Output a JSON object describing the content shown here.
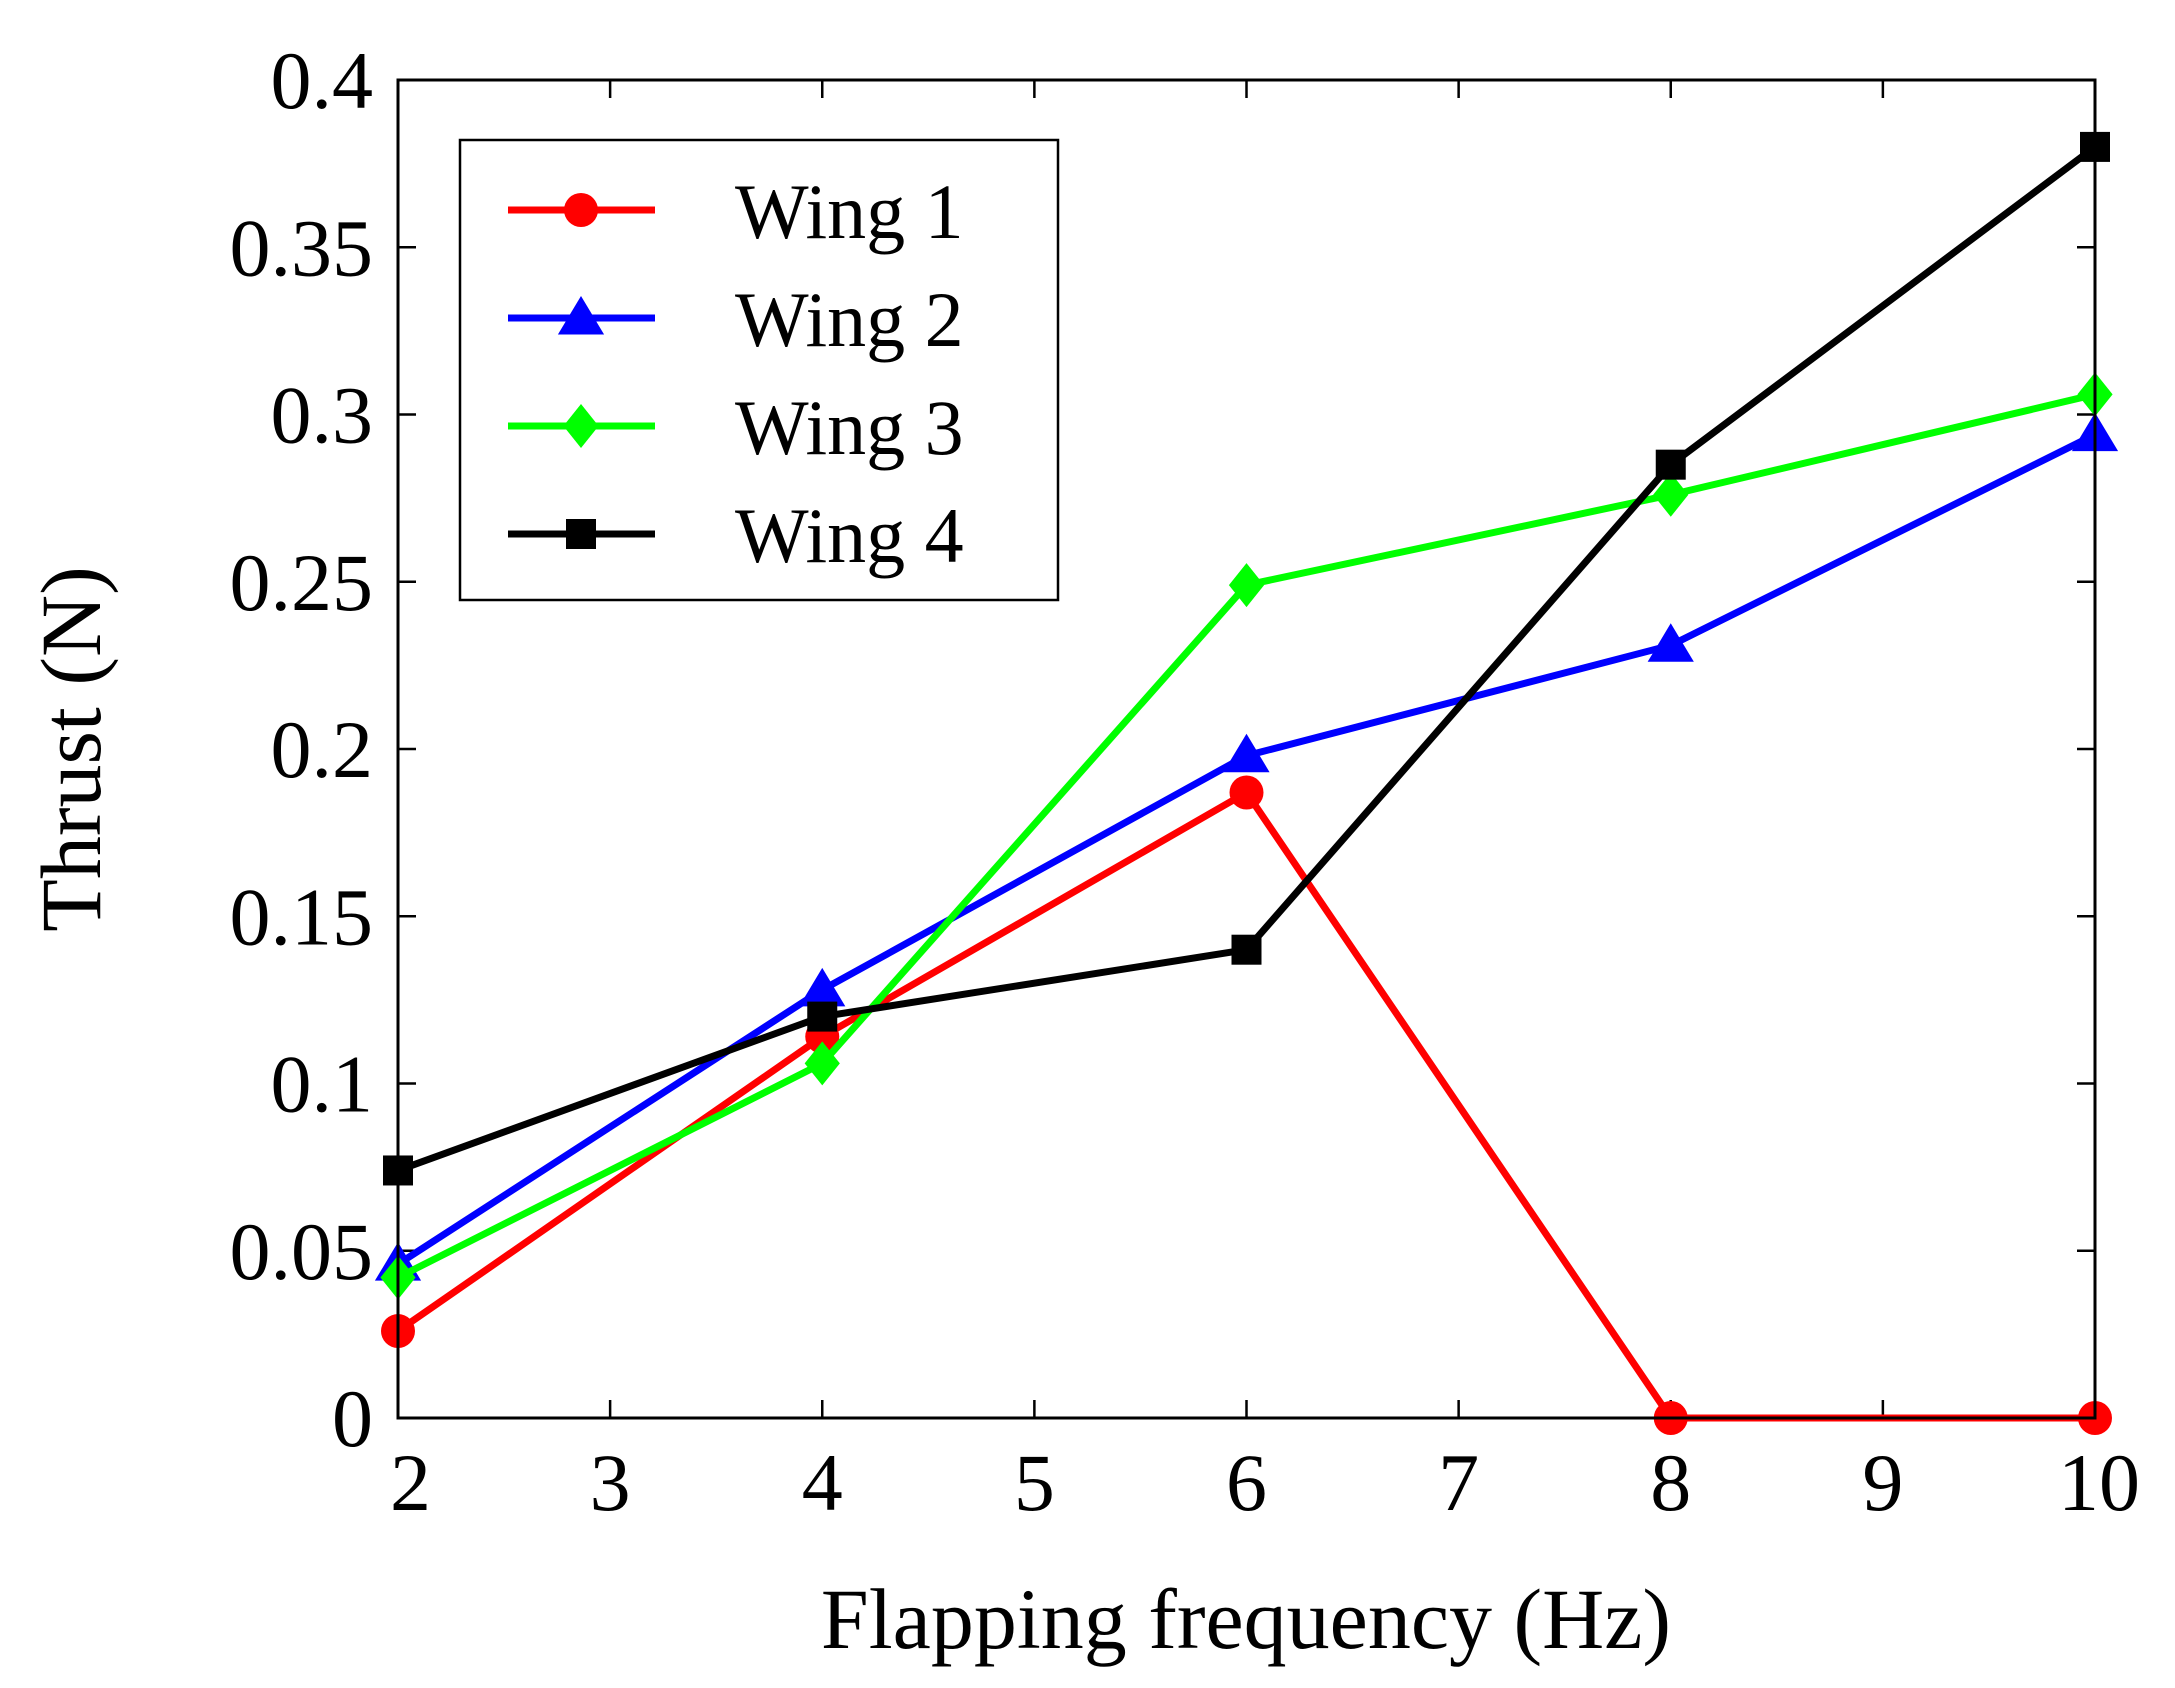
{
  "chart_data": {
    "type": "line",
    "title": "",
    "xlabel": "Flapping frequency (Hz)",
    "ylabel": "Thrust (N)",
    "xlim": [
      2,
      10
    ],
    "ylim": [
      0,
      0.4
    ],
    "xticks": [
      2,
      3,
      4,
      5,
      6,
      7,
      8,
      9,
      10
    ],
    "yticks": [
      0,
      0.05,
      0.1,
      0.15,
      0.2,
      0.25,
      0.3,
      0.35,
      0.4
    ],
    "xtick_labels": [
      "2",
      "3",
      "4",
      "5",
      "6",
      "7",
      "8",
      "9",
      "10"
    ],
    "ytick_labels": [
      "0",
      "0.05",
      "0.1",
      "0.15",
      "0.2",
      "0.25",
      "0.3",
      "0.35",
      "0.4"
    ],
    "legend_position": "top-left",
    "series": [
      {
        "name": "Wing 1",
        "color": "#ff0000",
        "marker": "circle",
        "x": [
          2,
          4,
          6,
          8,
          10
        ],
        "values": [
          0.026,
          0.114,
          0.187,
          0.0,
          0.0
        ]
      },
      {
        "name": "Wing 2",
        "color": "#0000ff",
        "marker": "triangle",
        "x": [
          2,
          4,
          6,
          8,
          10
        ],
        "values": [
          0.046,
          0.128,
          0.198,
          0.231,
          0.294
        ]
      },
      {
        "name": "Wing 3",
        "color": "#00ff00",
        "marker": "diamond",
        "x": [
          2,
          4,
          6,
          8,
          10
        ],
        "values": [
          0.042,
          0.106,
          0.249,
          0.276,
          0.306
        ]
      },
      {
        "name": "Wing 4",
        "color": "#000000",
        "marker": "square",
        "x": [
          2,
          4,
          6,
          8,
          10
        ],
        "values": [
          0.074,
          0.12,
          0.14,
          0.285,
          0.38
        ]
      }
    ]
  }
}
